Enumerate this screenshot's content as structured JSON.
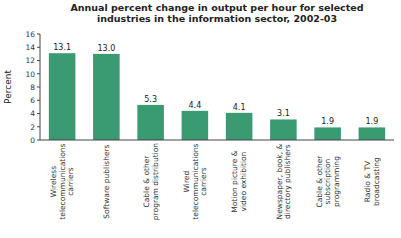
{
  "chart_data": {
    "type": "bar",
    "title": "Annual percent change in output per hour for selected\nindustries in the information sector, 2002-03",
    "categories": [
      "Wireless\ntelecommunications\ncarriers",
      "Software publishers",
      "Cable & other\nprogram distribution",
      "Wired\ntelecommunications\ncarriers",
      "Motion picture &\nvideo exhibition",
      "Newspaper, book, &\ndirectory publishers",
      "Cable & other\nsubscription\nprogramming",
      "Radio & TV\nbroadcasting"
    ],
    "values": [
      13.1,
      13.0,
      5.3,
      4.4,
      4.1,
      3.1,
      1.9,
      1.9
    ],
    "value_labels": [
      "13.1",
      "13.0",
      "5.3",
      "4.4",
      "4.1",
      "3.1",
      "1.9",
      "1.9"
    ],
    "color": "#3a9a72",
    "ylabel": "Percent",
    "ylim": [
      0,
      16
    ],
    "yticks": [
      0,
      2,
      4,
      6,
      8,
      10,
      12,
      14,
      16
    ],
    "grid": false,
    "data_labels": true
  }
}
